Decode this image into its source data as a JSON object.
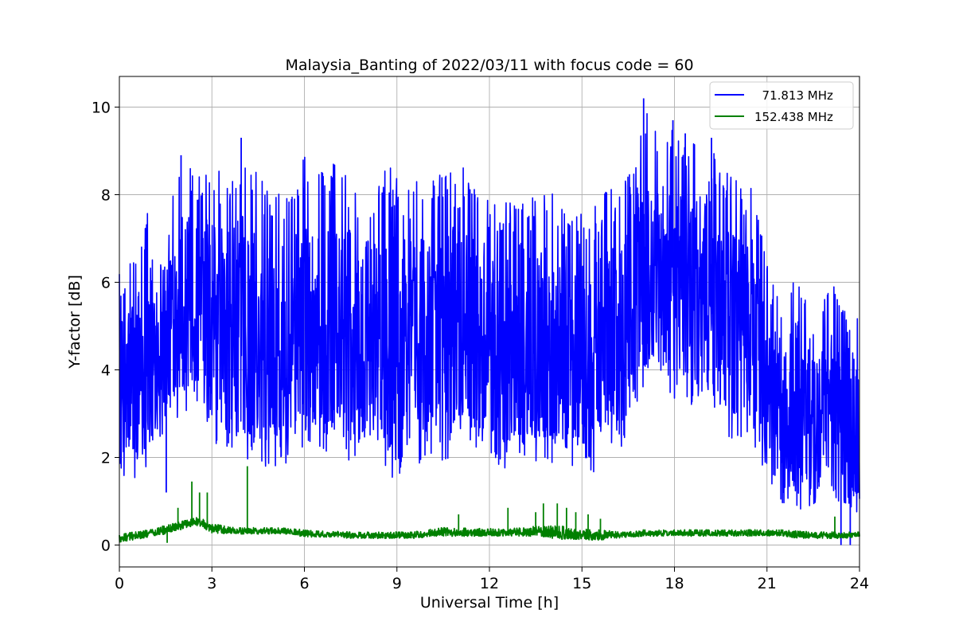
{
  "chart_data": {
    "type": "line",
    "title": "Malaysia_Banting of 2022/03/11 with focus code = 60",
    "xlabel": "Universal Time [h]",
    "ylabel": "Y-factor [dB]",
    "xlim": [
      0,
      24
    ],
    "ylim": [
      -0.5,
      10.7
    ],
    "xticks": [
      0,
      3,
      6,
      9,
      12,
      15,
      18,
      21,
      24
    ],
    "xtick_labels": [
      "0",
      "3",
      "6",
      "9",
      "12",
      "15",
      "18",
      "21",
      "24"
    ],
    "yticks": [
      0,
      2,
      4,
      6,
      8,
      10
    ],
    "ytick_labels": [
      "0",
      "2",
      "4",
      "6",
      "8",
      "10"
    ],
    "grid": true,
    "legend_position": "top-right",
    "series": [
      {
        "name": "71.813 MHz",
        "legend_label": "  71.813 MHz",
        "color": "#0000ff",
        "envelope": {
          "x": [
            0,
            0.5,
            1,
            1.5,
            2,
            2.5,
            3,
            3.5,
            4,
            4.5,
            5,
            5.5,
            6,
            6.5,
            7,
            7.5,
            8,
            8.5,
            9,
            9.5,
            10,
            10.5,
            11,
            11.5,
            12,
            12.5,
            13,
            13.5,
            14,
            14.5,
            15,
            15.5,
            16,
            16.5,
            17,
            17.5,
            18,
            18.5,
            19,
            19.5,
            20,
            20.5,
            21,
            21.5,
            22,
            22.5,
            23,
            23.5,
            24
          ],
          "low": [
            0.9,
            1.3,
            1.8,
            2.6,
            3.0,
            2.6,
            2.2,
            2.0,
            1.8,
            1.7,
            1.8,
            1.8,
            2.3,
            2.1,
            2.1,
            1.9,
            1.8,
            1.6,
            1.5,
            1.7,
            2.0,
            1.9,
            2.0,
            2.0,
            1.8,
            1.7,
            1.9,
            1.8,
            1.8,
            1.7,
            1.9,
            1.5,
            2.0,
            2.4,
            3.4,
            3.8,
            3.3,
            3.0,
            3.3,
            2.6,
            2.2,
            2.1,
            1.3,
            0.9,
            0.7,
            0.8,
            0.6,
            0.3,
            0.7
          ],
          "high": [
            6.2,
            7.0,
            7.8,
            8.0,
            8.9,
            8.5,
            8.9,
            8.4,
            9.0,
            8.5,
            8.0,
            8.2,
            8.9,
            8.7,
            8.8,
            8.5,
            8.4,
            8.6,
            8.7,
            8.3,
            8.6,
            8.8,
            8.6,
            8.8,
            8.1,
            7.8,
            8.2,
            8.0,
            8.2,
            7.6,
            7.7,
            7.8,
            8.3,
            8.5,
            10.2,
            9.3,
            9.6,
            9.3,
            9.3,
            8.7,
            8.5,
            8.4,
            6.5,
            5.5,
            6.4,
            5.0,
            6.5,
            5.6,
            5.5
          ]
        }
      },
      {
        "name": "152.438 MHz",
        "legend_label": "152.438 MHz",
        "color": "#008000",
        "envelope": {
          "x": [
            0,
            0.5,
            1,
            1.5,
            2,
            2.5,
            3,
            3.5,
            4,
            4.5,
            5,
            5.5,
            6,
            6.5,
            7,
            7.5,
            8,
            8.5,
            9,
            9.5,
            10,
            10.5,
            11,
            11.5,
            12,
            12.5,
            13,
            13.5,
            14,
            14.5,
            15,
            15.5,
            16,
            16.5,
            17,
            17.5,
            18,
            18.5,
            19,
            19.5,
            20,
            20.5,
            21,
            21.5,
            22,
            22.5,
            23,
            23.5,
            24
          ],
          "low": [
            0.05,
            0.12,
            0.18,
            0.25,
            0.35,
            0.45,
            0.28,
            0.25,
            0.25,
            0.25,
            0.25,
            0.25,
            0.18,
            0.18,
            0.18,
            0.15,
            0.15,
            0.15,
            0.15,
            0.15,
            0.18,
            0.2,
            0.2,
            0.2,
            0.2,
            0.2,
            0.2,
            0.2,
            0.15,
            0.12,
            0.12,
            0.1,
            0.15,
            0.18,
            0.2,
            0.2,
            0.2,
            0.2,
            0.2,
            0.2,
            0.2,
            0.2,
            0.2,
            0.2,
            0.15,
            0.15,
            0.15,
            0.15,
            0.18
          ],
          "high": [
            0.25,
            0.3,
            0.35,
            0.45,
            0.55,
            0.65,
            0.5,
            0.42,
            0.4,
            0.4,
            0.4,
            0.38,
            0.35,
            0.32,
            0.32,
            0.3,
            0.3,
            0.3,
            0.3,
            0.3,
            0.35,
            0.4,
            0.4,
            0.38,
            0.38,
            0.38,
            0.4,
            0.45,
            0.45,
            0.42,
            0.38,
            0.35,
            0.32,
            0.3,
            0.35,
            0.35,
            0.35,
            0.35,
            0.35,
            0.35,
            0.35,
            0.35,
            0.35,
            0.35,
            0.32,
            0.3,
            0.3,
            0.3,
            0.3
          ]
        },
        "spikes": [
          {
            "x": 1.55,
            "y": 0.05
          },
          {
            "x": 1.9,
            "y": 0.85
          },
          {
            "x": 2.35,
            "y": 1.45
          },
          {
            "x": 2.6,
            "y": 1.2
          },
          {
            "x": 2.85,
            "y": 1.2
          },
          {
            "x": 4.15,
            "y": 1.8
          },
          {
            "x": 11.0,
            "y": 0.7
          },
          {
            "x": 12.6,
            "y": 0.85
          },
          {
            "x": 13.5,
            "y": 0.75
          },
          {
            "x": 13.75,
            "y": 0.95
          },
          {
            "x": 14.2,
            "y": 0.95
          },
          {
            "x": 14.5,
            "y": 0.85
          },
          {
            "x": 14.8,
            "y": 0.75
          },
          {
            "x": 15.2,
            "y": 0.7
          },
          {
            "x": 15.6,
            "y": 0.6
          },
          {
            "x": 23.2,
            "y": 0.65
          }
        ]
      }
    ],
    "extra_spikes_71MHz": [
      {
        "x": 1.52,
        "low": 1.2
      },
      {
        "x": 2.0,
        "high": 8.9
      },
      {
        "x": 3.95,
        "high": 9.3
      },
      {
        "x": 17.0,
        "high": 10.2
      },
      {
        "x": 17.95,
        "high": 9.7
      },
      {
        "x": 18.35,
        "high": 9.4
      },
      {
        "x": 19.2,
        "high": 9.3
      },
      {
        "x": 23.4,
        "low": 0.0
      },
      {
        "x": 23.7,
        "low": 0.0
      }
    ]
  }
}
